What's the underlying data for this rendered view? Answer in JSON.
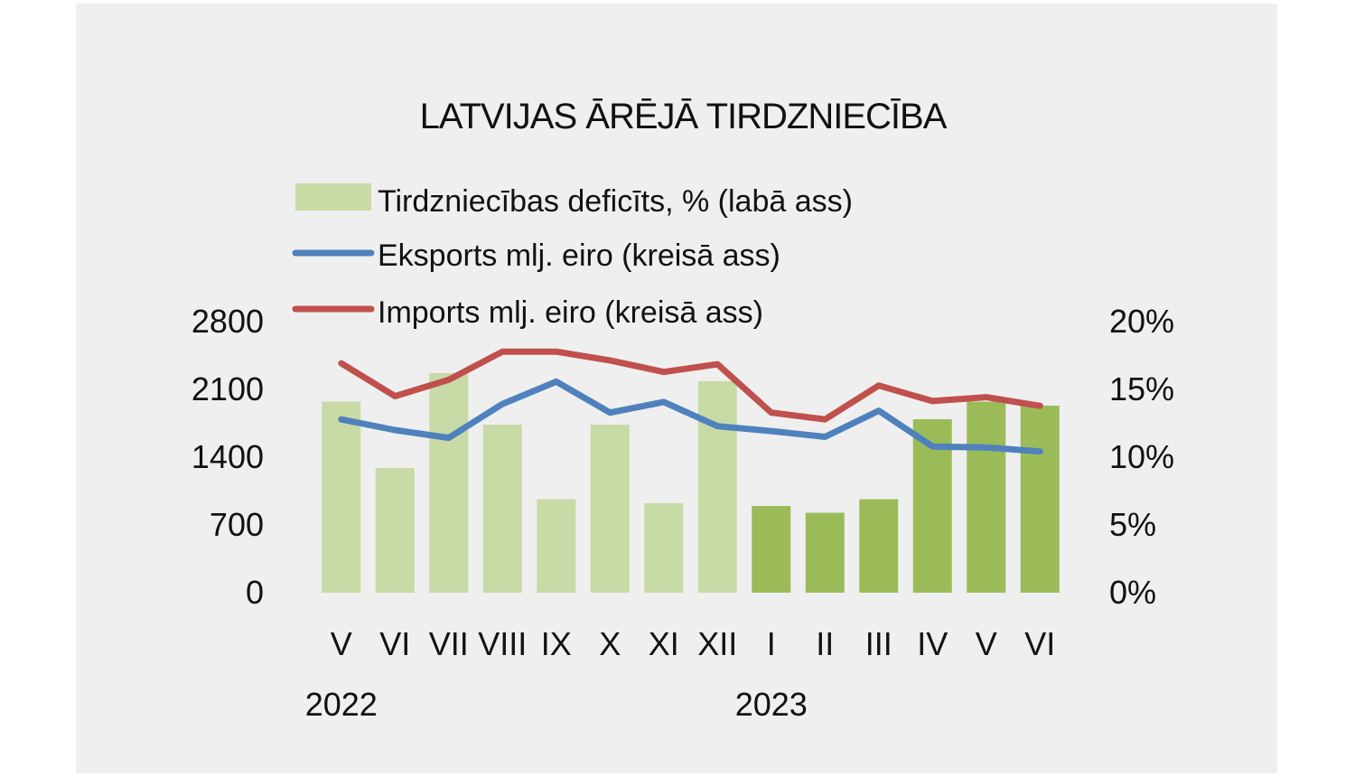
{
  "chart_data": {
    "type": "bar+line",
    "title": "LATVIJAS ĀRĒJĀ TIRDZNIECĪBA",
    "categories": [
      "V",
      "VI",
      "VII",
      "VIII",
      "IX",
      "X",
      "XI",
      "XII",
      "I",
      "II",
      "III",
      "IV",
      "V",
      "VI"
    ],
    "year_labels": [
      {
        "label": "2022",
        "category_index": 0
      },
      {
        "label": "2023",
        "category_index": 8
      }
    ],
    "legend": [
      {
        "key": "deficit",
        "label": "Tirdzniecības deficīts, % (labā ass)",
        "type": "bar"
      },
      {
        "key": "exports",
        "label": "Eksports mlj. eiro (kreisā ass)",
        "type": "line"
      },
      {
        "key": "imports",
        "label": "Imports mlj. eiro (kreisā ass)",
        "type": "line"
      }
    ],
    "series": [
      {
        "name": "Tirdzniecības deficīts, % (labā ass)",
        "axis": "right",
        "type": "bar",
        "values": [
          14.1,
          9.2,
          16.2,
          12.4,
          6.9,
          12.4,
          6.6,
          15.6,
          6.4,
          5.9,
          6.9,
          12.8,
          14.1,
          13.8
        ]
      },
      {
        "name": "Eksports mlj. eiro (kreisā ass)",
        "axis": "left",
        "type": "line",
        "values": [
          1790,
          1680,
          1600,
          1950,
          2180,
          1860,
          1970,
          1720,
          1670,
          1610,
          1880,
          1510,
          1500,
          1460
        ]
      },
      {
        "name": "Imports mlj. eiro (kreisā ass)",
        "axis": "left",
        "type": "line",
        "values": [
          2370,
          2030,
          2200,
          2490,
          2490,
          2400,
          2280,
          2360,
          1860,
          1790,
          2140,
          1980,
          2020,
          1930
        ]
      }
    ],
    "left_axis": {
      "ticks": [
        "0",
        "700",
        "1400",
        "2100",
        "2800"
      ],
      "range": [
        0,
        2800
      ]
    },
    "right_axis": {
      "ticks": [
        "0%",
        "5%",
        "10%",
        "15%",
        "20%"
      ],
      "range": [
        0,
        20
      ]
    },
    "colors": {
      "bar_2022": "#c8daa6",
      "bar_2023": "#9bbb59",
      "exports": "#4f81bd",
      "imports": "#c0504d",
      "background": "#efefef"
    }
  }
}
